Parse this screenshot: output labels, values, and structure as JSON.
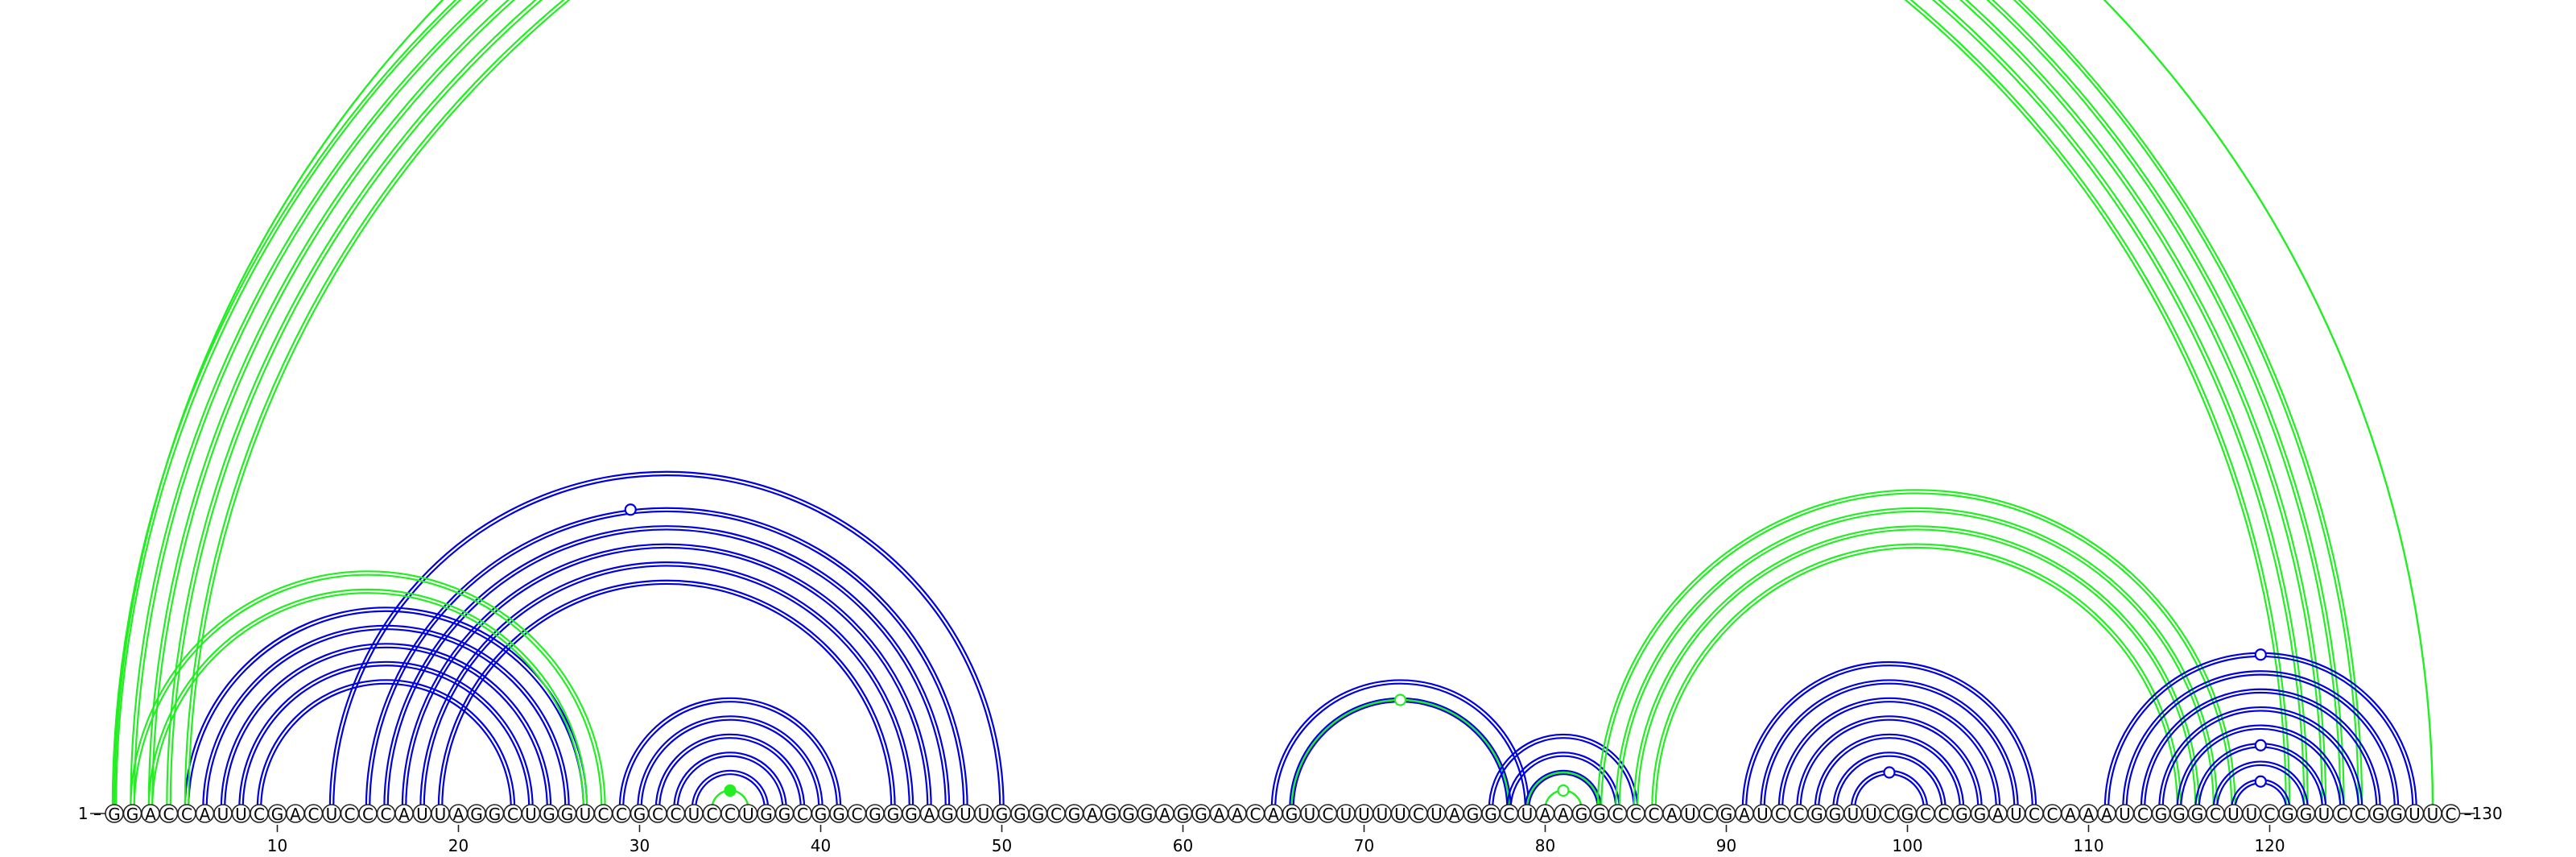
{
  "sequence": "GGACCAUUCGACUCCCAUUAGGCUGGUCCGCCUCCUGGCGGCGGGAGUUGGGCGAGGGAGGAACAGUCUUUUCUAGGCUAAGGCCCAUCGAUCCGGUUCGCCGGAUCCAAAUCGGGCUUCGGUCCGGUUC",
  "sequence_length": 130,
  "start_label": "1 –",
  "end_label": "–130",
  "ticks": [
    10,
    20,
    30,
    40,
    50,
    60,
    70,
    80,
    90,
    100,
    110,
    120
  ],
  "colors": {
    "blue": "#0000dd",
    "green": "#22ee22"
  },
  "arc_groups": [
    {
      "color": "blue",
      "pairs": [
        [
          5,
          27
        ],
        [
          6,
          26
        ],
        [
          7,
          25
        ],
        [
          8,
          24
        ],
        [
          9,
          23
        ]
      ],
      "strand": "double"
    },
    {
      "color": "blue",
      "pairs": [
        [
          13,
          50
        ],
        [
          15,
          48
        ],
        [
          16,
          47
        ],
        [
          17,
          46
        ],
        [
          18,
          45
        ],
        [
          19,
          44
        ]
      ],
      "strand": "double",
      "marker": {
        "type": "open",
        "pair": [
          13,
          46
        ]
      }
    },
    {
      "color": "blue",
      "pairs": [
        [
          29,
          41
        ],
        [
          30,
          40
        ],
        [
          31,
          39
        ],
        [
          32,
          38
        ],
        [
          33,
          37
        ]
      ],
      "strand": "double"
    },
    {
      "color": "green",
      "pairs": [
        [
          34,
          36
        ]
      ],
      "strand": "single",
      "marker": {
        "type": "filled",
        "pair": [
          34,
          36
        ]
      }
    },
    {
      "color": "green",
      "pairs": [
        [
          2,
          28
        ],
        [
          3,
          27
        ]
      ],
      "strand": "double"
    },
    {
      "color": "green",
      "pairs": [
        [
          1,
          125
        ],
        [
          2,
          124
        ],
        [
          3,
          123
        ],
        [
          4,
          122
        ],
        [
          5,
          121
        ]
      ],
      "strand": "double",
      "marker": {
        "type": "open",
        "pair": [
          1,
          129
        ]
      }
    },
    {
      "color": "green",
      "pairs": [
        [
          1,
          129
        ]
      ],
      "strand": "single"
    },
    {
      "color": "blue",
      "pairs": [
        [
          65,
          79
        ],
        [
          66,
          78
        ]
      ],
      "strand": "double"
    },
    {
      "color": "green",
      "pairs": [
        [
          66,
          78
        ]
      ],
      "strand": "single",
      "marker": {
        "type": "open",
        "pair": [
          66,
          78
        ]
      }
    },
    {
      "color": "blue",
      "pairs": [
        [
          77,
          85
        ],
        [
          78,
          84
        ],
        [
          79,
          83
        ]
      ],
      "strand": "double"
    },
    {
      "color": "green",
      "pairs": [
        [
          79,
          83
        ],
        [
          80,
          82
        ]
      ],
      "strand": "single",
      "marker": {
        "type": "open",
        "pair": [
          80,
          82
        ]
      }
    },
    {
      "color": "green",
      "pairs": [
        [
          83,
          118
        ],
        [
          84,
          117
        ],
        [
          85,
          116
        ],
        [
          86,
          115
        ]
      ],
      "strand": "double"
    },
    {
      "color": "blue",
      "pairs": [
        [
          91,
          107
        ],
        [
          92,
          106
        ],
        [
          93,
          105
        ],
        [
          94,
          104
        ],
        [
          95,
          103
        ],
        [
          96,
          102
        ],
        [
          97,
          101
        ]
      ],
      "strand": "double",
      "marker": {
        "type": "open",
        "pair": [
          97,
          101
        ]
      }
    },
    {
      "color": "blue",
      "pairs": [
        [
          111,
          128
        ],
        [
          112,
          127
        ],
        [
          113,
          126
        ],
        [
          114,
          125
        ],
        [
          115,
          124
        ]
      ],
      "strand": "double",
      "marker": {
        "type": "open",
        "pair": [
          111,
          128
        ]
      }
    },
    {
      "color": "blue",
      "pairs": [
        [
          116,
          123
        ],
        [
          117,
          122
        ]
      ],
      "strand": "double",
      "marker": {
        "type": "open",
        "pair": [
          116,
          123
        ]
      }
    },
    {
      "color": "blue",
      "pairs": [
        [
          118,
          121
        ]
      ],
      "strand": "double",
      "marker": {
        "type": "open",
        "pair": [
          118,
          121
        ]
      }
    }
  ]
}
